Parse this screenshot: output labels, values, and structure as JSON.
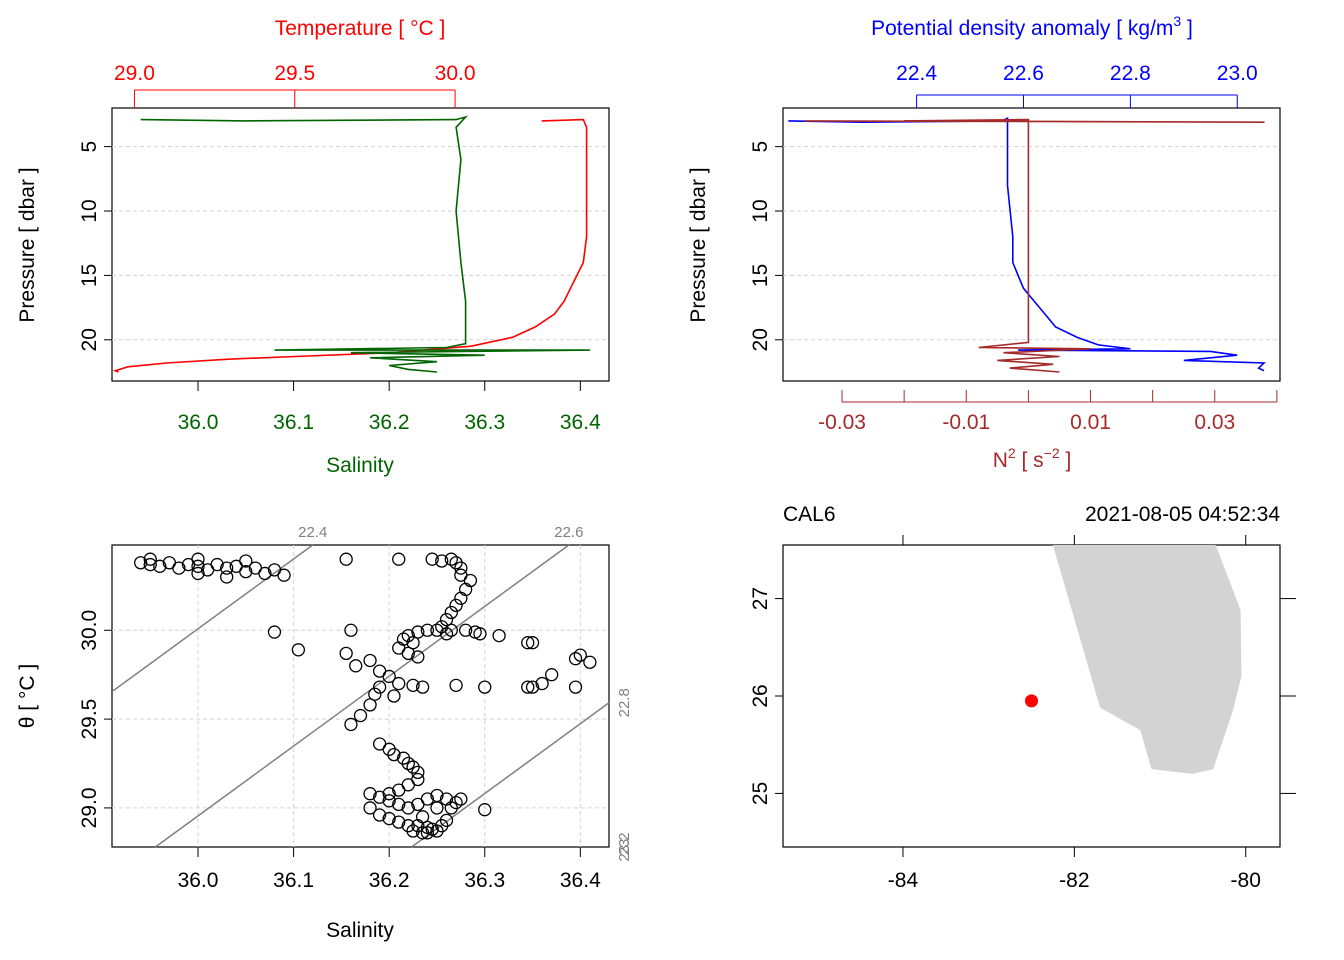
{
  "colors": {
    "temperature": "#ff0000",
    "salinity": "#006400",
    "density": "#0000ff",
    "n2": "#a52a2a",
    "isopycnal": "#808080",
    "land": "#d3d3d3",
    "station": "#ff0000"
  },
  "chart_data": [
    {
      "id": "profile-TS",
      "type": "line",
      "title": "",
      "ylabel": "Pressure [ dbar ]",
      "ylim": [
        23.2,
        2.0
      ],
      "yticks": [
        5,
        10,
        15,
        20
      ],
      "yticklabels": [
        "5",
        "10",
        "15",
        "20"
      ],
      "top_axis": {
        "label": "Temperature [ °C ]",
        "range": [
          28.93,
          30.48
        ],
        "ticks": [
          29.0,
          29.5,
          30.0
        ],
        "ticklabels": [
          "29.0",
          "29.5",
          "30.0"
        ]
      },
      "bottom_axis": {
        "label": "Salinity",
        "range": [
          35.91,
          36.43
        ],
        "ticks": [
          36.0,
          36.1,
          36.2,
          36.3,
          36.4
        ],
        "ticklabels": [
          "36.0",
          "36.1",
          "36.2",
          "36.3",
          "36.4"
        ]
      },
      "grid": true,
      "series": [
        {
          "name": "Temperature",
          "axis": "top",
          "points": [
            [
              30.27,
              3.0
            ],
            [
              30.4,
              2.9
            ],
            [
              30.41,
              3.5
            ],
            [
              30.41,
              8
            ],
            [
              30.41,
              12
            ],
            [
              30.4,
              14
            ],
            [
              30.38,
              15
            ],
            [
              30.36,
              16
            ],
            [
              30.34,
              17
            ],
            [
              30.31,
              18
            ],
            [
              30.25,
              19
            ],
            [
              30.18,
              19.8
            ],
            [
              30.05,
              20.5
            ],
            [
              29.8,
              21.0
            ],
            [
              29.5,
              21.3
            ],
            [
              29.3,
              21.5
            ],
            [
              29.1,
              21.8
            ],
            [
              28.98,
              22.1
            ],
            [
              28.94,
              22.4
            ],
            [
              28.95,
              22.5
            ]
          ]
        },
        {
          "name": "Salinity",
          "axis": "bottom",
          "points": [
            [
              35.94,
              2.9
            ],
            [
              36.05,
              3.0
            ],
            [
              36.27,
              2.9
            ],
            [
              36.28,
              2.7
            ],
            [
              36.27,
              3.5
            ],
            [
              36.275,
              6
            ],
            [
              36.27,
              10
            ],
            [
              36.275,
              14
            ],
            [
              36.28,
              17
            ],
            [
              36.28,
              19.5
            ],
            [
              36.28,
              20.3
            ],
            [
              36.26,
              20.6
            ],
            [
              36.08,
              20.8
            ],
            [
              36.41,
              20.8
            ],
            [
              36.16,
              21.0
            ],
            [
              36.3,
              21.2
            ],
            [
              36.18,
              21.4
            ],
            [
              36.25,
              21.7
            ],
            [
              36.2,
              22.0
            ],
            [
              36.22,
              22.3
            ],
            [
              36.25,
              22.5
            ]
          ]
        }
      ]
    },
    {
      "id": "profile-density",
      "type": "line",
      "title": "",
      "ylabel": "Pressure [ dbar ]",
      "ylim": [
        23.2,
        2.0
      ],
      "yticks": [
        5,
        10,
        15,
        20
      ],
      "yticklabels": [
        "5",
        "10",
        "15",
        "20"
      ],
      "top_axis": {
        "label": "Potential density anomaly [ kg/m³ ]",
        "range": [
          22.15,
          23.08
        ],
        "ticks": [
          22.4,
          22.6,
          22.8,
          23.0
        ],
        "ticklabels": [
          "22.4",
          "22.6",
          "22.8",
          "23.0"
        ]
      },
      "bottom_axis": {
        "label": "N² [ s⁻² ]",
        "range": [
          -0.0395,
          0.0405
        ],
        "ticks": [
          -0.03,
          -0.02,
          -0.01,
          0.0,
          0.01,
          0.02,
          0.03,
          0.04
        ],
        "ticklabels": [
          "-0.03",
          "",
          "-0.01",
          "",
          "0.01",
          "",
          "0.03",
          ""
        ]
      },
      "grid": true,
      "series": [
        {
          "name": "Potential density anomaly",
          "axis": "top",
          "points": [
            [
              22.16,
              3.0
            ],
            [
              22.3,
              3.1
            ],
            [
              22.56,
              3.0
            ],
            [
              22.57,
              2.8
            ],
            [
              22.57,
              4
            ],
            [
              22.57,
              8
            ],
            [
              22.58,
              12
            ],
            [
              22.58,
              14
            ],
            [
              22.59,
              15
            ],
            [
              22.6,
              16
            ],
            [
              22.62,
              17
            ],
            [
              22.64,
              18
            ],
            [
              22.66,
              19
            ],
            [
              22.7,
              19.8
            ],
            [
              22.74,
              20.4
            ],
            [
              22.8,
              20.7
            ],
            [
              22.59,
              20.8
            ],
            [
              22.95,
              20.9
            ],
            [
              23.0,
              21.2
            ],
            [
              22.9,
              21.6
            ],
            [
              23.05,
              21.8
            ],
            [
              23.04,
              22.2
            ],
            [
              23.05,
              22.4
            ]
          ]
        },
        {
          "name": "N2",
          "axis": "bottom",
          "points": [
            [
              -0.036,
              3.0
            ],
            [
              0.038,
              3.1
            ],
            [
              -0.02,
              3.0
            ],
            [
              0.0,
              2.9
            ],
            [
              0.0,
              5
            ],
            [
              0.0,
              10
            ],
            [
              0.0,
              15
            ],
            [
              0.0,
              19
            ],
            [
              0.0,
              20.2
            ],
            [
              -0.008,
              20.6
            ],
            [
              0.01,
              20.7
            ],
            [
              -0.004,
              21.0
            ],
            [
              0.005,
              21.3
            ],
            [
              -0.005,
              21.6
            ],
            [
              0.004,
              21.9
            ],
            [
              -0.003,
              22.2
            ],
            [
              0.005,
              22.5
            ]
          ]
        }
      ]
    },
    {
      "id": "TS-diagram",
      "type": "scatter",
      "title": "",
      "xlabel": "Salinity",
      "ylabel": "θ [ °C ]",
      "xlim": [
        35.91,
        36.43
      ],
      "ylim": [
        28.78,
        30.48
      ],
      "xticks": [
        36.0,
        36.1,
        36.2,
        36.3,
        36.4
      ],
      "xticklabels": [
        "36.0",
        "36.1",
        "36.2",
        "36.3",
        "36.4"
      ],
      "yticks": [
        29.0,
        29.5,
        30.0
      ],
      "yticklabels": [
        "29.0",
        "29.5",
        "30.0"
      ],
      "grid": true,
      "isopycnals": [
        {
          "label": "22.4",
          "sigma": 22.4,
          "label_position": "top"
        },
        {
          "label": "22.6",
          "sigma": 22.6,
          "label_position": "top"
        },
        {
          "label": "22.8",
          "sigma": 22.8,
          "label_position": "right"
        },
        {
          "label": "23",
          "sigma": 23.0,
          "label_position": "right"
        },
        {
          "label": "23.2",
          "sigma": 23.2,
          "label_position": "right"
        }
      ],
      "points": [
        [
          35.94,
          30.38
        ],
        [
          35.95,
          30.37
        ],
        [
          35.96,
          30.36
        ],
        [
          35.97,
          30.38
        ],
        [
          35.98,
          30.35
        ],
        [
          35.99,
          30.37
        ],
        [
          36.0,
          30.36
        ],
        [
          36.01,
          30.34
        ],
        [
          36.02,
          30.37
        ],
        [
          36.03,
          30.35
        ],
        [
          36.04,
          30.36
        ],
        [
          36.05,
          30.33
        ],
        [
          36.06,
          30.35
        ],
        [
          36.07,
          30.32
        ],
        [
          36.08,
          30.34
        ],
        [
          36.09,
          30.31
        ],
        [
          35.95,
          30.4
        ],
        [
          36.0,
          30.4
        ],
        [
          36.05,
          30.39
        ],
        [
          36.03,
          30.3
        ],
        [
          36.0,
          30.32
        ],
        [
          36.155,
          30.4
        ],
        [
          36.21,
          30.4
        ],
        [
          36.245,
          30.4
        ],
        [
          36.255,
          30.39
        ],
        [
          36.265,
          30.4
        ],
        [
          36.27,
          30.38
        ],
        [
          36.275,
          30.35
        ],
        [
          36.275,
          30.31
        ],
        [
          36.285,
          30.28
        ],
        [
          36.28,
          30.23
        ],
        [
          36.275,
          30.18
        ],
        [
          36.27,
          30.14
        ],
        [
          36.265,
          30.1
        ],
        [
          36.26,
          30.06
        ],
        [
          36.255,
          30.02
        ],
        [
          36.25,
          30.0
        ],
        [
          36.265,
          30.0
        ],
        [
          36.28,
          30.0
        ],
        [
          36.295,
          29.98
        ],
        [
          36.24,
          30.0
        ],
        [
          36.23,
          29.99
        ],
        [
          36.22,
          29.97
        ],
        [
          36.215,
          29.95
        ],
        [
          36.225,
          29.93
        ],
        [
          36.21,
          29.9
        ],
        [
          36.22,
          29.87
        ],
        [
          36.23,
          29.85
        ],
        [
          36.26,
          29.98
        ],
        [
          36.29,
          29.99
        ],
        [
          36.315,
          29.97
        ],
        [
          36.08,
          29.99
        ],
        [
          36.105,
          29.89
        ],
        [
          36.16,
          30.0
        ],
        [
          36.155,
          29.87
        ],
        [
          36.18,
          29.83
        ],
        [
          36.165,
          29.8
        ],
        [
          36.19,
          29.77
        ],
        [
          36.2,
          29.74
        ],
        [
          36.21,
          29.7
        ],
        [
          36.19,
          29.68
        ],
        [
          36.185,
          29.64
        ],
        [
          36.205,
          29.63
        ],
        [
          36.225,
          29.69
        ],
        [
          36.235,
          29.68
        ],
        [
          36.27,
          29.69
        ],
        [
          36.3,
          29.68
        ],
        [
          36.18,
          29.58
        ],
        [
          36.17,
          29.52
        ],
        [
          36.16,
          29.47
        ],
        [
          36.345,
          29.93
        ],
        [
          36.35,
          29.93
        ],
        [
          36.4,
          29.86
        ],
        [
          36.395,
          29.84
        ],
        [
          36.41,
          29.82
        ],
        [
          36.37,
          29.75
        ],
        [
          36.36,
          29.7
        ],
        [
          36.345,
          29.68
        ],
        [
          36.35,
          29.68
        ],
        [
          36.395,
          29.68
        ],
        [
          36.19,
          29.36
        ],
        [
          36.2,
          29.33
        ],
        [
          36.205,
          29.3
        ],
        [
          36.215,
          29.28
        ],
        [
          36.22,
          29.25
        ],
        [
          36.225,
          29.23
        ],
        [
          36.23,
          29.2
        ],
        [
          36.23,
          29.16
        ],
        [
          36.22,
          29.13
        ],
        [
          36.21,
          29.1
        ],
        [
          36.2,
          29.08
        ],
        [
          36.19,
          29.06
        ],
        [
          36.18,
          29.08
        ],
        [
          36.2,
          29.04
        ],
        [
          36.21,
          29.02
        ],
        [
          36.22,
          29.0
        ],
        [
          36.23,
          29.02
        ],
        [
          36.24,
          29.05
        ],
        [
          36.25,
          29.07
        ],
        [
          36.26,
          29.05
        ],
        [
          36.27,
          29.03
        ],
        [
          36.275,
          29.05
        ],
        [
          36.18,
          29.0
        ],
        [
          36.19,
          28.96
        ],
        [
          36.2,
          28.94
        ],
        [
          36.21,
          28.92
        ],
        [
          36.22,
          28.9
        ],
        [
          36.23,
          28.9
        ],
        [
          36.24,
          28.89
        ],
        [
          36.245,
          28.88
        ],
        [
          36.225,
          28.87
        ],
        [
          36.235,
          28.86
        ],
        [
          36.24,
          28.86
        ],
        [
          36.25,
          28.87
        ],
        [
          36.255,
          28.9
        ],
        [
          36.26,
          28.93
        ],
        [
          36.3,
          28.99
        ],
        [
          36.235,
          28.95
        ],
        [
          36.25,
          29.0
        ],
        [
          36.265,
          29.0
        ]
      ]
    },
    {
      "id": "station-map",
      "type": "scatter",
      "title_left": "CAL6",
      "title_right": "2021-08-05 04:52:34",
      "xlim": [
        -85.4,
        -79.6
      ],
      "ylim": [
        24.45,
        27.55
      ],
      "xticks": [
        -84,
        -82,
        -80
      ],
      "xticklabels": [
        "-84",
        "-82",
        "-80"
      ],
      "yticks": [
        25,
        26,
        27
      ],
      "yticklabels": [
        "25",
        "26",
        "27"
      ],
      "land_polygon": [
        [
          -82.25,
          27.55
        ],
        [
          -80.35,
          27.55
        ],
        [
          -80.06,
          26.88
        ],
        [
          -80.05,
          26.2
        ],
        [
          -80.15,
          25.85
        ],
        [
          -80.38,
          25.25
        ],
        [
          -80.62,
          25.2
        ],
        [
          -81.1,
          25.25
        ],
        [
          -81.23,
          25.65
        ],
        [
          -81.7,
          25.88
        ],
        [
          -82.25,
          27.55
        ]
      ],
      "station": {
        "name": "CAL6",
        "lon": -82.5,
        "lat": 25.95
      }
    }
  ]
}
